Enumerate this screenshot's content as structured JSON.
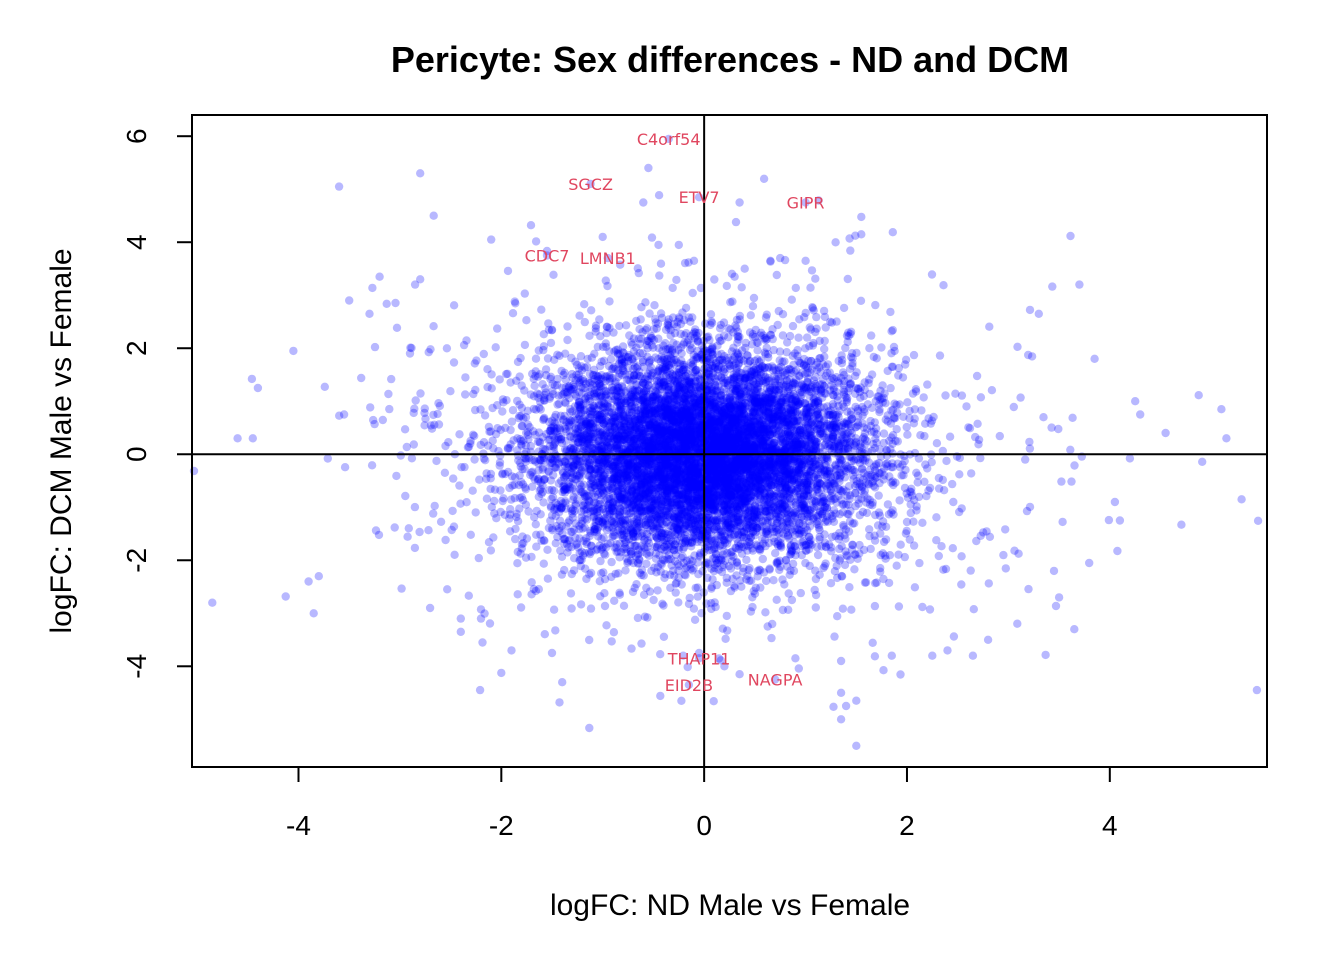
{
  "chart_data": {
    "type": "scatter",
    "title": "Pericyte: Sex differences - ND and DCM",
    "xlabel": "logFC: ND Male vs Female",
    "ylabel": "logFC: DCM Male vs Female",
    "xlim": [
      -5.05,
      5.55
    ],
    "ylim": [
      -5.9,
      6.4
    ],
    "xticks": [
      -4,
      -2,
      0,
      2,
      4
    ],
    "yticks": [
      -4,
      -2,
      0,
      2,
      4,
      6
    ],
    "xtick_labels": [
      "-4",
      "-2",
      "0",
      "2",
      "4"
    ],
    "ytick_labels": [
      "-4",
      "-2",
      "0",
      "2",
      "4",
      "6"
    ],
    "reference_lines": {
      "x": 0,
      "y": 0
    },
    "point_color": "#0000ff",
    "label_color": "#e0465f",
    "approx_point_count": 9000,
    "dense_cluster": {
      "x_sd": 0.75,
      "y_sd": 0.95,
      "center": [
        0,
        0
      ]
    },
    "outlier_points": [
      [
        -4.85,
        -2.8
      ],
      [
        -4.6,
        0.3
      ],
      [
        -4.4,
        1.25
      ],
      [
        -4.45,
        0.3
      ],
      [
        -3.9,
        -2.4
      ],
      [
        -3.85,
        -3.0
      ],
      [
        -3.6,
        5.05
      ],
      [
        -3.5,
        2.9
      ],
      [
        -3.2,
        3.35
      ],
      [
        -2.8,
        5.3
      ],
      [
        -2.8,
        3.3
      ],
      [
        -2.85,
        3.2
      ],
      [
        -2.9,
        1.9
      ],
      [
        -2.1,
        4.05
      ],
      [
        -3.8,
        -2.3
      ],
      [
        -4.05,
        1.95
      ],
      [
        -3.55,
        0.75
      ],
      [
        -3.3,
        2.65
      ],
      [
        -1.9,
        -3.7
      ],
      [
        -1.5,
        -3.75
      ],
      [
        -1.4,
        -4.3
      ],
      [
        -2.4,
        -3.1
      ],
      [
        -2.4,
        -3.35
      ],
      [
        -2.2,
        -3.1
      ],
      [
        -1.0,
        4.1
      ],
      [
        -0.6,
        4.75
      ],
      [
        -0.55,
        5.4
      ],
      [
        -0.45,
        3.95
      ],
      [
        -0.25,
        3.95
      ],
      [
        -0.1,
        3.65
      ],
      [
        0.35,
        4.75
      ],
      [
        0.3,
        3.35
      ],
      [
        0.4,
        3.5
      ],
      [
        0.75,
        3.7
      ],
      [
        1.0,
        3.65
      ],
      [
        1.55,
        4.15
      ],
      [
        3.7,
        3.2
      ],
      [
        3.3,
        2.65
      ],
      [
        3.85,
        1.8
      ],
      [
        4.25,
        1.0
      ],
      [
        4.3,
        0.75
      ],
      [
        4.55,
        0.4
      ],
      [
        5.1,
        0.85
      ],
      [
        5.15,
        0.3
      ],
      [
        5.3,
        -0.85
      ],
      [
        5.45,
        -4.45
      ],
      [
        4.05,
        -0.9
      ],
      [
        4.1,
        -1.25
      ],
      [
        3.5,
        -2.7
      ],
      [
        3.65,
        -3.3
      ],
      [
        3.45,
        -2.2
      ],
      [
        2.8,
        -3.5
      ],
      [
        2.25,
        -3.8
      ],
      [
        1.85,
        -3.8
      ],
      [
        1.35,
        -4.5
      ],
      [
        1.4,
        -4.75
      ],
      [
        1.35,
        -5.0
      ],
      [
        1.5,
        -4.65
      ],
      [
        1.5,
        -5.5
      ],
      [
        0.9,
        -3.85
      ],
      [
        1.35,
        -3.9
      ],
      [
        0.35,
        -4.15
      ],
      [
        -0.05,
        -3.75
      ],
      [
        0.2,
        -4.0
      ],
      [
        2.4,
        -3.7
      ],
      [
        2.65,
        -3.8
      ]
    ],
    "labeled_points": [
      {
        "gene": "C4orf54",
        "x": -0.35,
        "y": 5.95
      },
      {
        "gene": "SGCZ",
        "x": -1.12,
        "y": 5.1
      },
      {
        "gene": "ETV7",
        "x": -0.05,
        "y": 4.85
      },
      {
        "gene": "GIPR",
        "x": 1.0,
        "y": 4.75
      },
      {
        "gene": "CDC7",
        "x": -1.55,
        "y": 3.75
      },
      {
        "gene": "LMNB1",
        "x": -0.95,
        "y": 3.7
      },
      {
        "gene": "THAP11",
        "x": -0.05,
        "y": -3.85
      },
      {
        "gene": "EID2B",
        "x": -0.15,
        "y": -4.35
      },
      {
        "gene": "NAGPA",
        "x": 0.7,
        "y": -4.25
      }
    ]
  }
}
